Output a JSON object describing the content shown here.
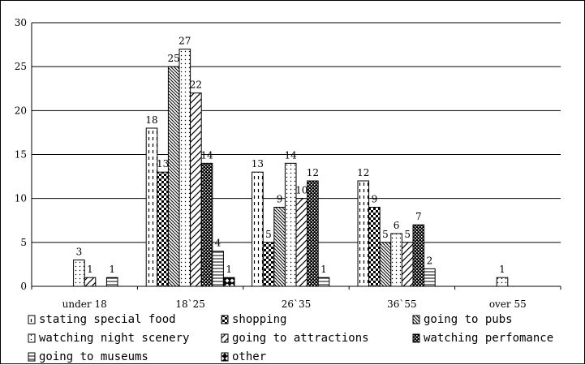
{
  "chart_data": {
    "type": "bar",
    "categories": [
      "under 18",
      "18`25",
      "26`35",
      "36`55",
      "over 55"
    ],
    "ylim": [
      0,
      30
    ],
    "yticks": [
      0,
      5,
      10,
      15,
      20,
      25,
      30
    ],
    "grid": "horizontal",
    "legend_position": "bottom",
    "series": [
      {
        "name": "stating special food",
        "pattern": "dash-vertical",
        "values": [
          0,
          18,
          13,
          12,
          0
        ]
      },
      {
        "name": "shopping",
        "pattern": "checker",
        "values": [
          0,
          13,
          5,
          9,
          0
        ]
      },
      {
        "name": "going to pubs",
        "pattern": "diag-dense",
        "values": [
          0,
          25,
          9,
          5,
          0
        ]
      },
      {
        "name": "watching night scenery",
        "pattern": "dots",
        "values": [
          3,
          27,
          14,
          6,
          1
        ]
      },
      {
        "name": "going to attractions",
        "pattern": "diag-wide",
        "values": [
          1,
          22,
          10,
          5,
          0
        ]
      },
      {
        "name": "watching perfomance",
        "pattern": "dark-check",
        "values": [
          0,
          14,
          12,
          7,
          0
        ]
      },
      {
        "name": "going to museums",
        "pattern": "horizontal",
        "values": [
          1,
          4,
          1,
          2,
          0
        ]
      },
      {
        "name": "other",
        "pattern": "dark-diamond",
        "values": [
          0,
          1,
          0,
          0,
          0
        ]
      }
    ]
  }
}
